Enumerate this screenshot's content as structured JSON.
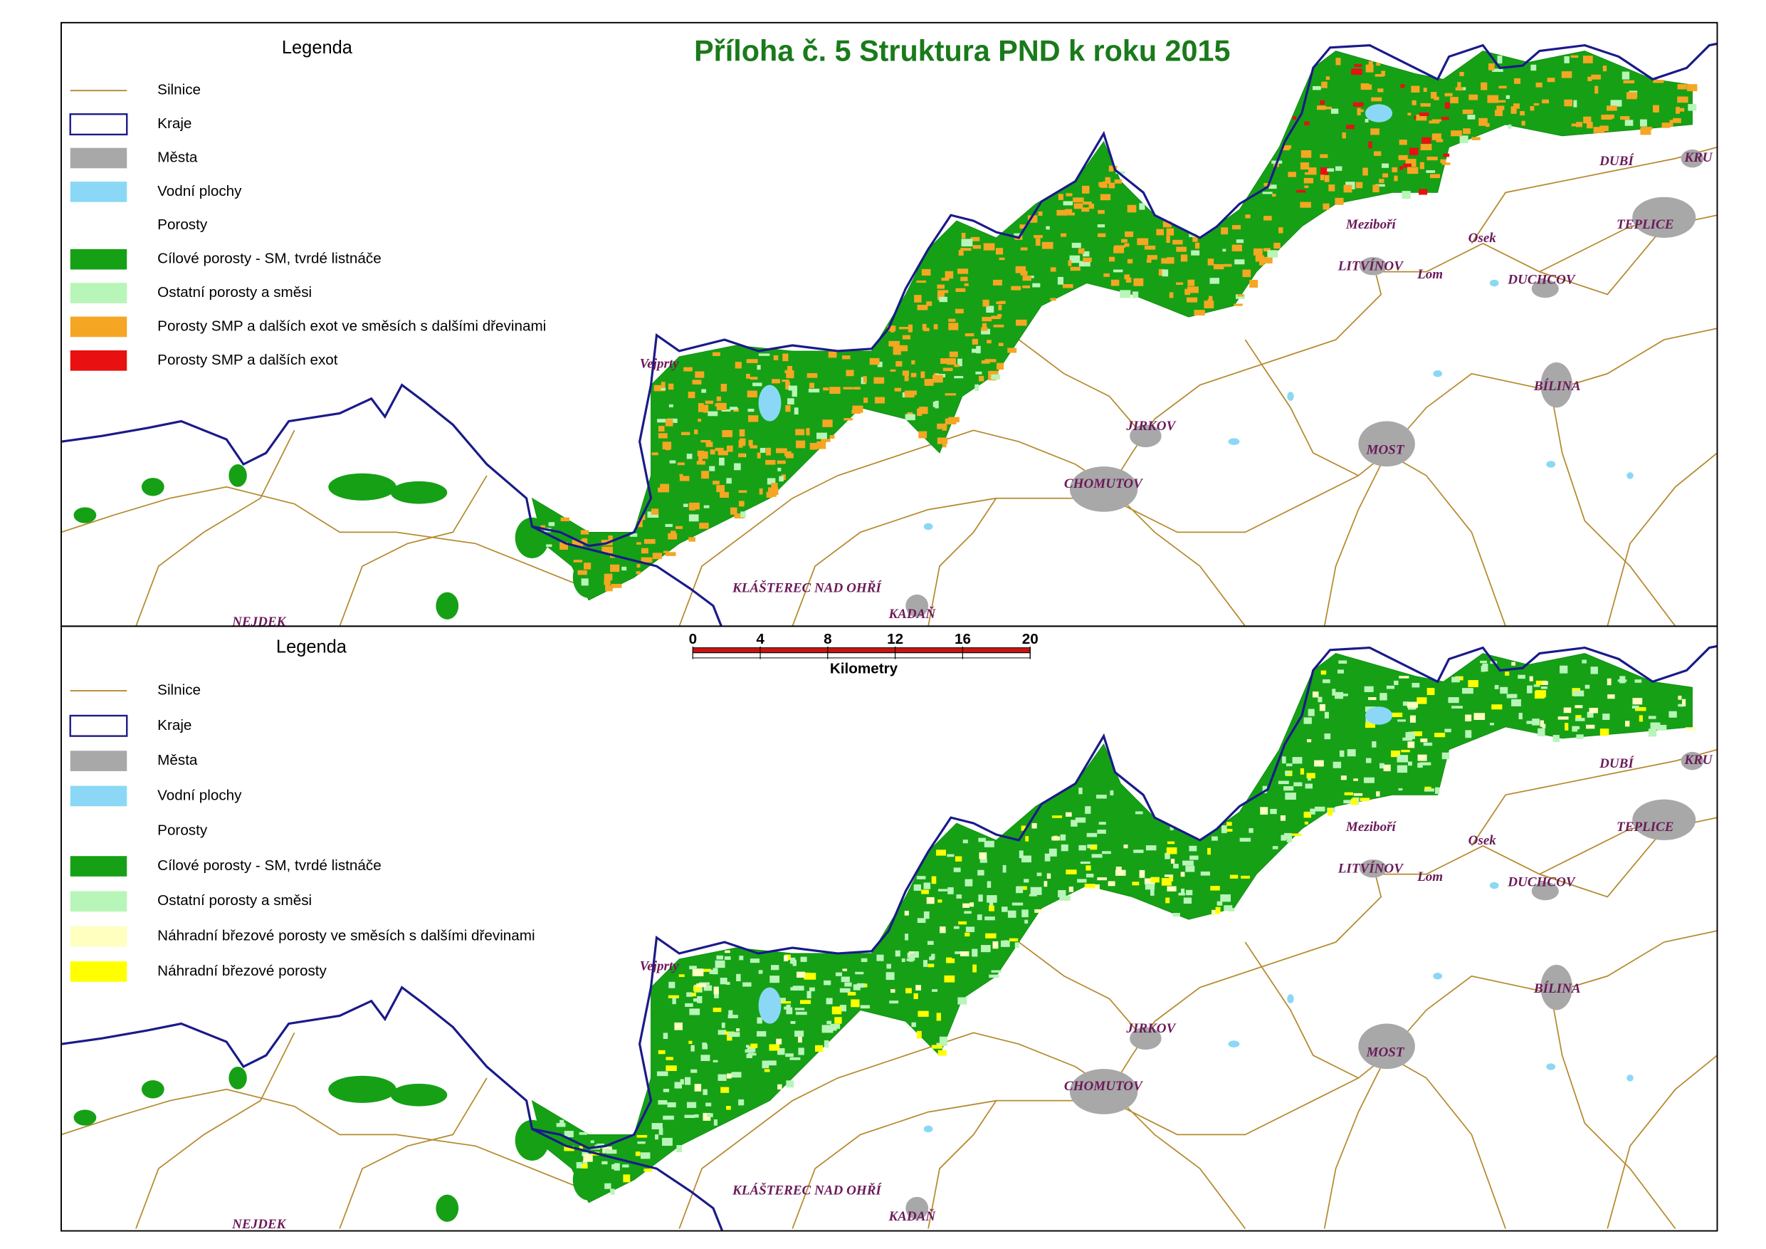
{
  "title": "Příloha č. 5 Struktura PND k roku 2015",
  "maps": [
    {
      "legend": {
        "title": "Legenda",
        "items": [
          "Silnice",
          "Kraje",
          "Města",
          "Vodní plochy",
          "Porosty",
          "Cílové porosty - SM, tvrdé listnáče",
          "Ostatní porosty a směsi",
          "Porosty SMP a dalších exot ve směsích s dalšími dřevinami",
          "Porosty SMP a dalších exot"
        ]
      },
      "places": [
        "Vejprty",
        "NEJDEK",
        "KLÁŠTEREC NAD OHŘÍ",
        "KADAŇ",
        "CHOMUTOV",
        "JIRKOV",
        "MOST",
        "BÍLINA",
        "DUCHCOV",
        "LITVÍNOV",
        "Lom",
        "Osek",
        "Meziboří",
        "DUBÍ",
        "TEPLICE",
        "KRU"
      ]
    },
    {
      "legend": {
        "title": "Legenda",
        "items": [
          "Silnice",
          "Kraje",
          "Města",
          "Vodní plochy",
          "Porosty",
          "Cílové porosty - SM, tvrdé listnáče",
          "Ostatní porosty a směsi",
          "Náhradní březové porosty ve směsích s dalšími dřevinami",
          "Náhradní březové porosty"
        ]
      },
      "places": [
        "Vejprty",
        "NEJDEK",
        "KLÁŠTEREC NAD OHŘÍ",
        "KADAŇ",
        "CHOMUTOV",
        "JIRKOV",
        "MOST",
        "BÍLINA",
        "DUCHCOV",
        "LITVÍNOV",
        "Lom",
        "Osek",
        "Meziboří",
        "DUBÍ",
        "TEPLICE",
        "KRU"
      ]
    }
  ],
  "scale_bar": {
    "ticks": [
      0,
      4,
      8,
      12,
      16,
      20
    ],
    "unit": "Kilometry"
  }
}
